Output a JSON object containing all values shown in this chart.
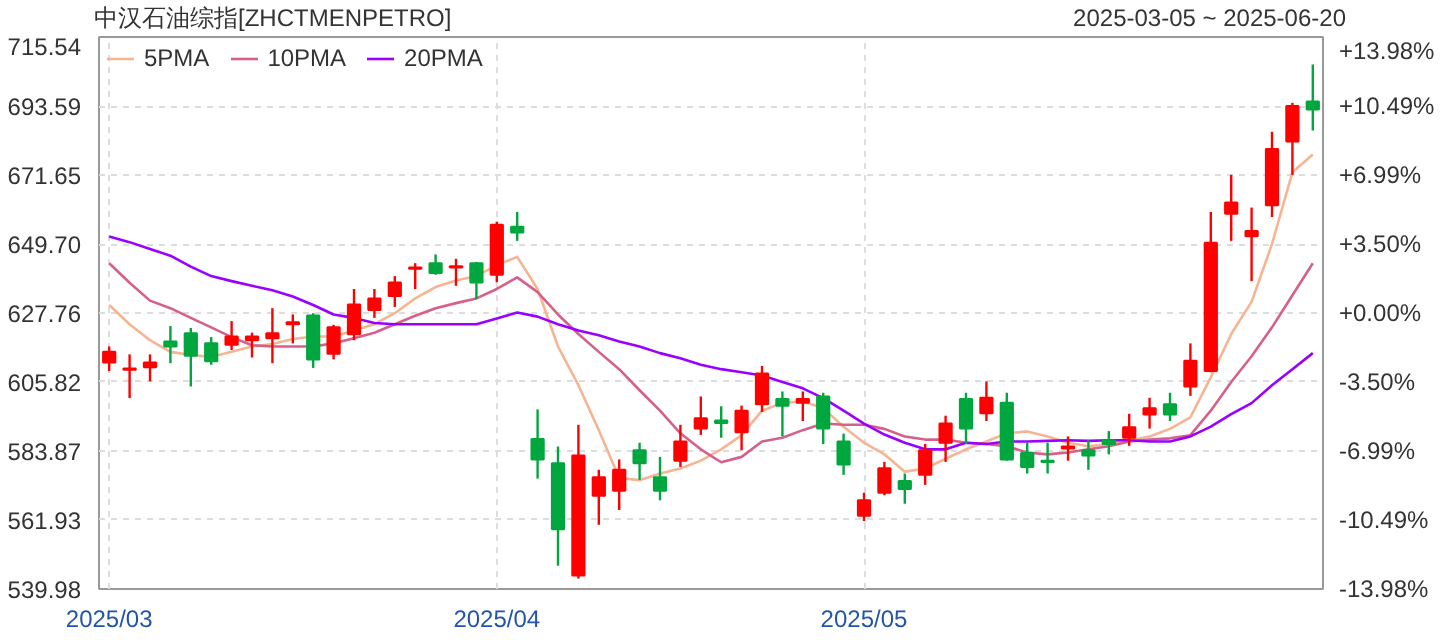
{
  "chart_data": {
    "type": "candlestick",
    "title": "中汉石油综指[ZHCTMENPETRO]",
    "subtitle": "2025-03-05 ~ 2025-06-20",
    "categories": [
      "2025/03",
      null,
      null,
      null,
      null,
      null,
      null,
      null,
      null,
      null,
      null,
      null,
      null,
      null,
      null,
      null,
      null,
      null,
      null,
      "2025/04",
      null,
      null,
      null,
      null,
      null,
      null,
      null,
      null,
      null,
      null,
      null,
      null,
      null,
      null,
      null,
      null,
      null,
      "2025/05",
      null,
      null,
      null,
      null,
      null,
      null,
      null,
      null,
      null,
      null,
      null,
      null,
      null,
      null,
      null,
      null,
      null,
      null,
      null,
      null,
      null,
      null
    ],
    "ohlc": [
      [
        612.0,
        617.1,
        609.3,
        615.4
      ],
      [
        609.7,
        614.6,
        600.7,
        610.1
      ],
      [
        610.5,
        614.6,
        606.0,
        612.0
      ],
      [
        618.7,
        623.6,
        611.8,
        617.1
      ],
      [
        621.3,
        623.0,
        604.4,
        614.2
      ],
      [
        618.1,
        620.1,
        611.3,
        612.4
      ],
      [
        617.7,
        625.2,
        616.0,
        620.3
      ],
      [
        619.1,
        621.5,
        613.6,
        620.3
      ],
      [
        619.7,
        629.3,
        611.8,
        621.3
      ],
      [
        624.2,
        627.3,
        618.1,
        624.8
      ],
      [
        627.0,
        627.7,
        610.3,
        613.0
      ],
      [
        614.8,
        624.0,
        613.0,
        623.2
      ],
      [
        621.0,
        635.4,
        619.1,
        630.5
      ],
      [
        628.7,
        635.4,
        626.2,
        632.4
      ],
      [
        633.2,
        639.5,
        629.7,
        637.5
      ],
      [
        641.8,
        643.6,
        635.4,
        642.2
      ],
      [
        643.6,
        646.4,
        639.9,
        640.5
      ],
      [
        642.2,
        645.0,
        636.4,
        642.6
      ],
      [
        643.6,
        644.0,
        632.2,
        637.5
      ],
      [
        639.9,
        656.8,
        637.5,
        655.8
      ],
      [
        655.2,
        659.9,
        650.7,
        653.4
      ],
      [
        587.7,
        597.1,
        575.1,
        581.2
      ],
      [
        580.0,
        585.3,
        547.4,
        559.0
      ],
      [
        544.3,
        592.2,
        543.3,
        582.4
      ],
      [
        569.6,
        577.9,
        560.4,
        575.5
      ],
      [
        571.2,
        581.2,
        565.1,
        577.9
      ],
      [
        584.1,
        586.5,
        574.7,
        580.0
      ],
      [
        575.5,
        582.0,
        568.2,
        571.2
      ],
      [
        580.8,
        592.2,
        578.8,
        586.9
      ],
      [
        591.0,
        601.2,
        589.0,
        594.3
      ],
      [
        593.6,
        598.1,
        588.1,
        592.8
      ],
      [
        589.8,
        598.3,
        584.1,
        596.7
      ],
      [
        598.7,
        610.9,
        596.3,
        608.5
      ],
      [
        600.4,
        602.8,
        588.5,
        598.3
      ],
      [
        599.2,
        602.8,
        593.4,
        600.4
      ],
      [
        601.2,
        602.4,
        586.1,
        591.0
      ],
      [
        586.9,
        589.4,
        576.3,
        579.6
      ],
      [
        563.3,
        570.6,
        561.6,
        568.2
      ],
      [
        570.6,
        580.4,
        569.8,
        578.4
      ],
      [
        574.3,
        576.7,
        567.1,
        571.8
      ],
      [
        576.3,
        586.1,
        573.1,
        584.1
      ],
      [
        586.5,
        595.1,
        580.4,
        592.6
      ],
      [
        600.4,
        602.4,
        586.1,
        591.0
      ],
      [
        595.9,
        606.0,
        593.4,
        600.8
      ],
      [
        599.2,
        602.4,
        580.8,
        581.2
      ],
      [
        583.2,
        586.5,
        576.7,
        578.8
      ],
      [
        580.8,
        586.5,
        576.7,
        580.4
      ],
      [
        584.7,
        588.5,
        580.8,
        585.3
      ],
      [
        584.1,
        587.3,
        577.9,
        582.4
      ],
      [
        587.3,
        590.2,
        582.8,
        586.1
      ],
      [
        588.1,
        595.7,
        585.5,
        591.4
      ],
      [
        595.5,
        600.8,
        591.0,
        597.5
      ],
      [
        598.7,
        602.4,
        593.4,
        595.5
      ],
      [
        604.4,
        618.1,
        601.4,
        612.6
      ],
      [
        609.3,
        659.9,
        608.9,
        650.1
      ],
      [
        659.3,
        671.7,
        650.7,
        662.9
      ],
      [
        652.2,
        661.3,
        637.9,
        653.8
      ],
      [
        662.0,
        685.4,
        658.3,
        679.9
      ],
      [
        682.3,
        694.6,
        671.7,
        693.6
      ],
      [
        695.0,
        706.8,
        685.8,
        692.5
      ]
    ],
    "colors": [
      "#ff0000",
      "#ff0000",
      "#ff0000",
      "#00a63e",
      "#00a63e",
      "#00a63e",
      "#ff0000",
      "#ff0000",
      "#ff0000",
      "#ff0000",
      "#00a63e",
      "#ff0000",
      "#ff0000",
      "#ff0000",
      "#ff0000",
      "#ff0000",
      "#00a63e",
      "#ff0000",
      "#00a63e",
      "#ff0000",
      "#00a63e",
      "#00a63e",
      "#00a63e",
      "#ff0000",
      "#ff0000",
      "#ff0000",
      "#00a63e",
      "#00a63e",
      "#ff0000",
      "#ff0000",
      "#00a63e",
      "#ff0000",
      "#ff0000",
      "#00a63e",
      "#ff0000",
      "#00a63e",
      "#00a63e",
      "#ff0000",
      "#ff0000",
      "#00a63e",
      "#ff0000",
      "#ff0000",
      "#00a63e",
      "#ff0000",
      "#00a63e",
      "#00a63e",
      "#00a63e",
      "#ff0000",
      "#00a63e",
      "#00a63e",
      "#ff0000",
      "#ff0000",
      "#00a63e",
      "#ff0000",
      "#ff0000",
      "#ff0000",
      "#ff0000",
      "#ff0000",
      "#ff0000",
      "#00a63e"
    ],
    "series": [
      {
        "type": "line",
        "name": "5PMA",
        "color": "#f5b593",
        "values": [
          630.3,
          624.2,
          619.1,
          615.4,
          614.4,
          613.8,
          615.4,
          617.1,
          617.9,
          619.5,
          620.3,
          620.3,
          622.2,
          624.2,
          627.7,
          632.4,
          636.0,
          638.1,
          639.5,
          643.0,
          645.6,
          635.4,
          617.1,
          604.8,
          590.5,
          575.3,
          574.6,
          576.7,
          578.3,
          580.8,
          584.4,
          588.9,
          596.7,
          599.1,
          599.7,
          597.5,
          591.6,
          586.5,
          582.8,
          577.3,
          578.3,
          581.4,
          584.4,
          586.9,
          589.5,
          590.1,
          588.5,
          586.5,
          585.4,
          586.1,
          587.3,
          588.5,
          590.9,
          594.6,
          607.3,
          621.1,
          631.3,
          649.7,
          672.5,
          678.2
        ]
      },
      {
        "type": "line",
        "name": "10PMA",
        "color": "#d6608c",
        "values": [
          643.6,
          637.4,
          631.7,
          629.3,
          626.2,
          623.2,
          620.1,
          617.5,
          617.1,
          617.1,
          617.1,
          618.1,
          619.7,
          621.5,
          624.2,
          626.9,
          629.3,
          630.9,
          632.4,
          635.4,
          639.1,
          634.4,
          627.3,
          621.1,
          615.4,
          609.9,
          603.2,
          596.7,
          589.5,
          584.4,
          580.3,
          582.0,
          586.9,
          588.1,
          590.5,
          592.6,
          592.2,
          592.2,
          590.9,
          588.5,
          587.5,
          587.5,
          586.5,
          586.1,
          585.4,
          583.4,
          582.8,
          583.4,
          584.4,
          585.4,
          586.9,
          587.5,
          587.9,
          588.9,
          596.7,
          605.8,
          614.0,
          623.2,
          633.4,
          643.6
        ]
      },
      {
        "type": "line",
        "name": "20PMA",
        "color": "#9a00ff",
        "values": [
          652.1,
          650.3,
          648.1,
          646.0,
          642.5,
          639.5,
          637.9,
          636.4,
          635.0,
          633.0,
          630.3,
          627.3,
          626.2,
          624.6,
          624.2,
          624.2,
          624.2,
          624.2,
          624.2,
          626.0,
          627.9,
          626.6,
          624.2,
          622.2,
          620.7,
          618.7,
          617.1,
          615.0,
          613.4,
          611.3,
          609.9,
          608.9,
          607.9,
          605.8,
          603.8,
          600.7,
          596.7,
          592.6,
          589.1,
          586.5,
          584.4,
          584.4,
          586.5,
          586.1,
          586.9,
          586.9,
          587.1,
          587.3,
          587.1,
          587.3,
          587.3,
          586.9,
          586.9,
          588.5,
          591.6,
          595.6,
          599.1,
          604.8,
          609.9,
          615.0
        ]
      }
    ],
    "ylim": [
      539.98,
      715.54
    ],
    "yticks": [
      539.98,
      561.93,
      583.87,
      605.82,
      627.76,
      {
        "value": 649.7,
        "label": "649.70"
      },
      671.65,
      693.59,
      715.54
    ],
    "y2lim": [
      -13.98,
      13.98
    ],
    "y2ticks": [
      {
        "value": -13.98,
        "label": "-13.98%"
      },
      {
        "value": -10.49,
        "label": "-10.49%"
      },
      {
        "value": -6.99,
        "label": "-6.99%"
      },
      {
        "value": -3.5,
        "label": "-3.50%"
      },
      {
        "value": 0,
        "label": "+0.00%"
      },
      {
        "value": 3.5,
        "label": "+3.50%"
      },
      {
        "value": 6.99,
        "label": "+6.99%"
      },
      {
        "value": 10.49,
        "label": "+10.49%"
      },
      {
        "value": 13.98,
        "label": "+13.98%"
      }
    ],
    "grid": true,
    "legend": "top left"
  }
}
